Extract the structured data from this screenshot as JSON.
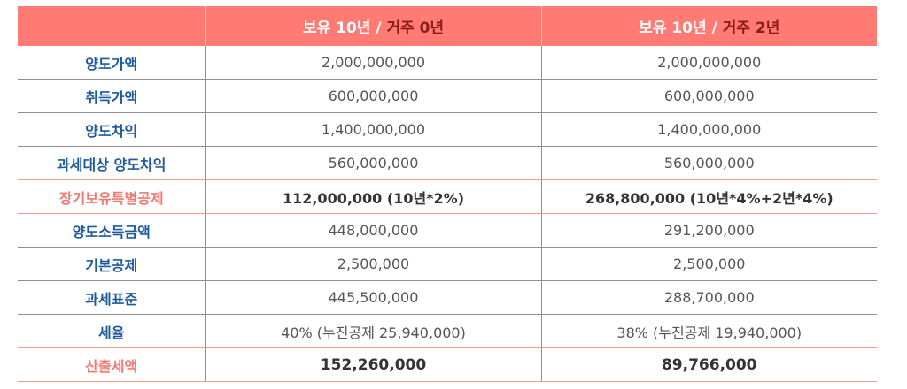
{
  "table": {
    "header": {
      "corner": "",
      "columns": [
        {
          "white": "보유 10년 / ",
          "red": "거주 0년"
        },
        {
          "white": "보유 10년 / ",
          "red": "거주 2년"
        }
      ]
    },
    "rows": [
      {
        "label": "양도가액",
        "col1": "2,000,000,000",
        "col2": "2,000,000,000",
        "highlight": false
      },
      {
        "label": "취득가액",
        "col1": "600,000,000",
        "col2": "600,000,000",
        "highlight": false
      },
      {
        "label": "양도차익",
        "col1": "1,400,000,000",
        "col2": "1,400,000,000",
        "highlight": false
      },
      {
        "label": "과세대상 양도차익",
        "col1": "560,000,000",
        "col2": "560,000,000",
        "highlight": false
      },
      {
        "label": "장기보유특별공제",
        "col1": "112,000,000 (10년*2%)",
        "col2": "268,800,000 (10년*4%+2년*4%)",
        "highlight": true
      },
      {
        "label": "양도소득금액",
        "col1": "448,000,000",
        "col2": "291,200,000",
        "highlight": false
      },
      {
        "label": "기본공제",
        "col1": "2,500,000",
        "col2": "2,500,000",
        "highlight": false
      },
      {
        "label": "과세표준",
        "col1": "445,500,000",
        "col2": "288,700,000",
        "highlight": false
      },
      {
        "label": "세율",
        "col1": "40% (누진공제 25,940,000)",
        "col2": "38% (누진공제 19,940,000)",
        "highlight": false
      },
      {
        "label": "산출세액",
        "col1": "152,260,000",
        "col2": "89,766,000",
        "highlight": true
      }
    ]
  },
  "colors": {
    "header_bg": "#ff7b73",
    "header_text_white": "#ffffff",
    "header_text_red": "#8a1c1c",
    "label_blue": "#1f5a9c",
    "label_highlight": "#f07a70",
    "divider_pink": "#f29a94",
    "divider_gray": "#8e8e8e"
  }
}
